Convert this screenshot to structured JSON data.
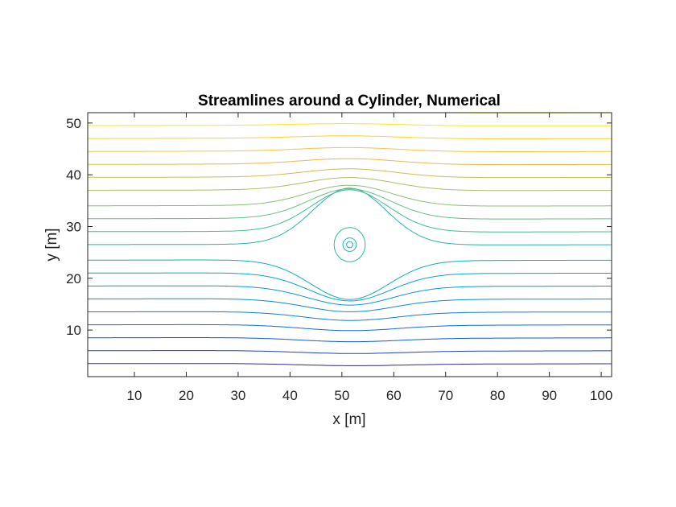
{
  "chart_data": {
    "type": "line",
    "title": "Streamlines around a Cylinder, Numerical",
    "xlabel": "x [m]",
    "ylabel": "y [m]",
    "xlim": [
      1,
      102
    ],
    "ylim": [
      1,
      52
    ],
    "xticks": [
      10,
      20,
      30,
      40,
      50,
      60,
      70,
      80,
      90,
      100
    ],
    "yticks": [
      10,
      20,
      30,
      40,
      50
    ],
    "grid": false,
    "legend": "none",
    "colormap": "parula",
    "cylinder_center": [
      51.5,
      26.5
    ],
    "contour_far_field_y": [
      3.5,
      6,
      8.5,
      11,
      13.5,
      16,
      18.5,
      21,
      23.5,
      26.5,
      29,
      31.5,
      34,
      37,
      39.5,
      42,
      44.5,
      47,
      49.5,
      52
    ],
    "closed_contours": [
      {
        "name": "inner",
        "rx": 0.6,
        "ry": 0.6
      },
      {
        "name": "ring-2",
        "rx": 1.3,
        "ry": 1.3
      },
      {
        "name": "ring-3",
        "rx": 3.0,
        "ry": 3.3
      }
    ]
  }
}
